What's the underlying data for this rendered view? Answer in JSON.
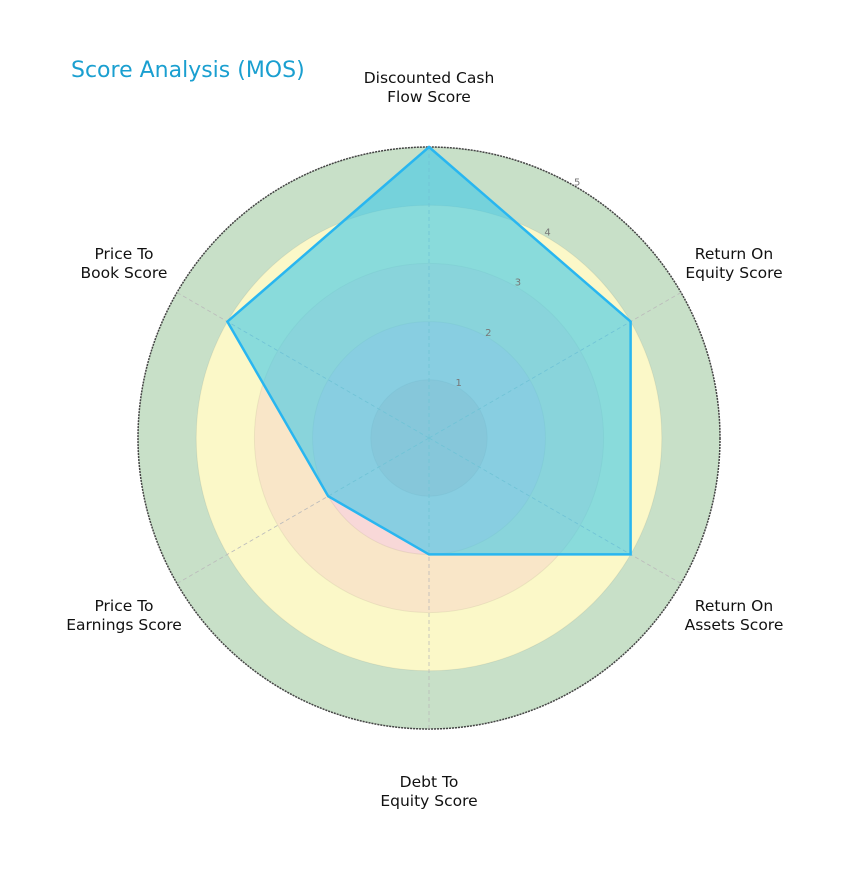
{
  "chart_data": {
    "type": "radar",
    "title": "Score Analysis (MOS)",
    "categories": [
      "Discounted Cash Flow Score",
      "Return On Equity Score",
      "Return On Assets Score",
      "Debt To Equity Score",
      "Price To Earnings Score",
      "Price To Book Score"
    ],
    "label_lines": [
      [
        "Discounted Cash",
        "Flow Score"
      ],
      [
        "Return On",
        "Equity Score"
      ],
      [
        "Return On",
        "Assets Score"
      ],
      [
        "Debt To",
        "Equity Score"
      ],
      [
        "Price To",
        "Earnings Score"
      ],
      [
        "Price To",
        "Book Score"
      ]
    ],
    "series": [
      {
        "name": "MOS",
        "values": [
          5,
          4,
          4,
          2,
          2,
          4
        ]
      }
    ],
    "rlim": [
      0,
      5
    ],
    "rticks": [
      "1",
      "2",
      "3",
      "4",
      "5"
    ],
    "bands": [
      {
        "from": 4,
        "to": 5,
        "color": "#c8e0c8"
      },
      {
        "from": 3,
        "to": 4,
        "color": "#fbf8c8"
      },
      {
        "from": 2,
        "to": 3,
        "color": "#f9e6c8"
      },
      {
        "from": 1,
        "to": 2,
        "color": "#f8d8d8"
      },
      {
        "from": 0,
        "to": 1,
        "color": "#f2c6c6"
      }
    ],
    "colors": {
      "title": "#1a9fd0",
      "line": "#29b6f0",
      "fill": "#3ec8e8",
      "outer_border": "#444444"
    }
  }
}
